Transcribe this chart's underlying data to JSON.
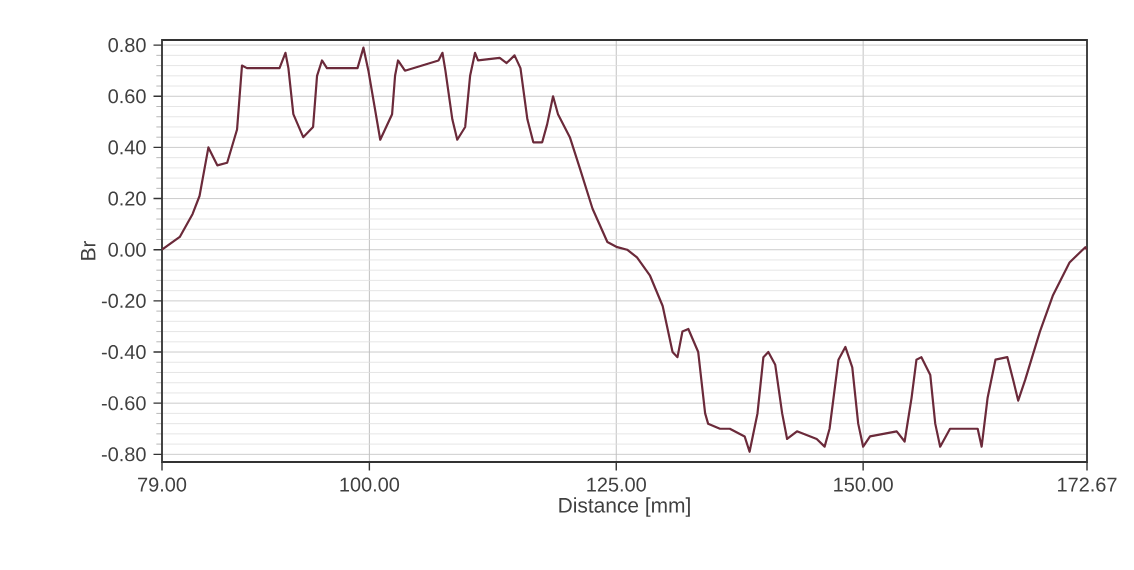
{
  "chart_data": {
    "type": "line",
    "xlabel": "Distance [mm]",
    "ylabel": "Br",
    "xlim": [
      79,
      172.67
    ],
    "ylim": [
      -0.83,
      0.82
    ],
    "xticks": [
      {
        "value": 79,
        "label": "79.00"
      },
      {
        "value": 100,
        "label": "100.00"
      },
      {
        "value": 125,
        "label": "125.00"
      },
      {
        "value": 150,
        "label": "150.00"
      },
      {
        "value": 172.67,
        "label": "172.67"
      }
    ],
    "yticks": [
      {
        "value": -0.8,
        "label": "-0.80"
      },
      {
        "value": -0.6,
        "label": "-0.60"
      },
      {
        "value": -0.4,
        "label": "-0.40"
      },
      {
        "value": -0.2,
        "label": "-0.20"
      },
      {
        "value": 0,
        "label": "0.00"
      },
      {
        "value": 0.2,
        "label": "0.20"
      },
      {
        "value": 0.4,
        "label": "0.40"
      },
      {
        "value": 0.6,
        "label": "0.60"
      },
      {
        "value": 0.8,
        "label": "0.80"
      }
    ],
    "grid": true,
    "marker": "none",
    "line_style": "solid",
    "series": [
      {
        "color": "#6b2a3a",
        "x": [
          79,
          80.8,
          82.1,
          82.8,
          83.7,
          84.6,
          85.6,
          86.6,
          87.1,
          87.6,
          90.9,
          91.5,
          91.8,
          92.3,
          93.3,
          94.3,
          94.7,
          95.2,
          95.7,
          98.8,
          99.4,
          99.9,
          101.1,
          102.3,
          102.6,
          102.9,
          103.6,
          107.0,
          107.4,
          107.7,
          108.4,
          108.9,
          109.7,
          110.2,
          110.7,
          111.0,
          113.2,
          113.9,
          114.7,
          115.3,
          116.0,
          116.6,
          117.5,
          118.0,
          118.6,
          119.1,
          120.3,
          121.3,
          122.6,
          124.1,
          125.1,
          126.1,
          127.1,
          128.4,
          129.7,
          130.7,
          131.2,
          131.7,
          132.3,
          133.3,
          134.0,
          134.3,
          135.5,
          136.5,
          138.0,
          138.5,
          139.3,
          139.9,
          140.4,
          141.1,
          141.8,
          142.3,
          143.3,
          145.3,
          146.1,
          146.6,
          147.5,
          148.2,
          148.9,
          149.5,
          150.0,
          150.7,
          153.4,
          154.2,
          154.9,
          155.4,
          155.9,
          156.8,
          157.3,
          157.8,
          158.8,
          161.6,
          162.0,
          162.6,
          163.4,
          164.6,
          165.2,
          165.7,
          166.4,
          167.9,
          169.2,
          170.9,
          172.5,
          172.67
        ],
        "values": [
          0,
          0.05,
          0.14,
          0.21,
          0.4,
          0.33,
          0.34,
          0.47,
          0.72,
          0.71,
          0.71,
          0.77,
          0.71,
          0.53,
          0.44,
          0.48,
          0.68,
          0.74,
          0.71,
          0.71,
          0.79,
          0.7,
          0.43,
          0.53,
          0.68,
          0.74,
          0.7,
          0.74,
          0.77,
          0.7,
          0.51,
          0.43,
          0.48,
          0.68,
          0.77,
          0.74,
          0.75,
          0.73,
          0.76,
          0.71,
          0.51,
          0.42,
          0.42,
          0.49,
          0.6,
          0.53,
          0.44,
          0.32,
          0.16,
          0.03,
          0.01,
          0.0,
          -0.03,
          -0.1,
          -0.22,
          -0.4,
          -0.42,
          -0.32,
          -0.31,
          -0.4,
          -0.64,
          -0.68,
          -0.7,
          -0.7,
          -0.73,
          -0.79,
          -0.64,
          -0.42,
          -0.4,
          -0.45,
          -0.64,
          -0.74,
          -0.71,
          -0.74,
          -0.77,
          -0.7,
          -0.43,
          -0.38,
          -0.46,
          -0.68,
          -0.77,
          -0.73,
          -0.71,
          -0.75,
          -0.58,
          -0.43,
          -0.42,
          -0.49,
          -0.68,
          -0.77,
          -0.7,
          -0.7,
          -0.77,
          -0.58,
          -0.43,
          -0.42,
          -0.51,
          -0.59,
          -0.51,
          -0.32,
          -0.18,
          -0.05,
          0.01,
          0.0
        ]
      }
    ]
  }
}
